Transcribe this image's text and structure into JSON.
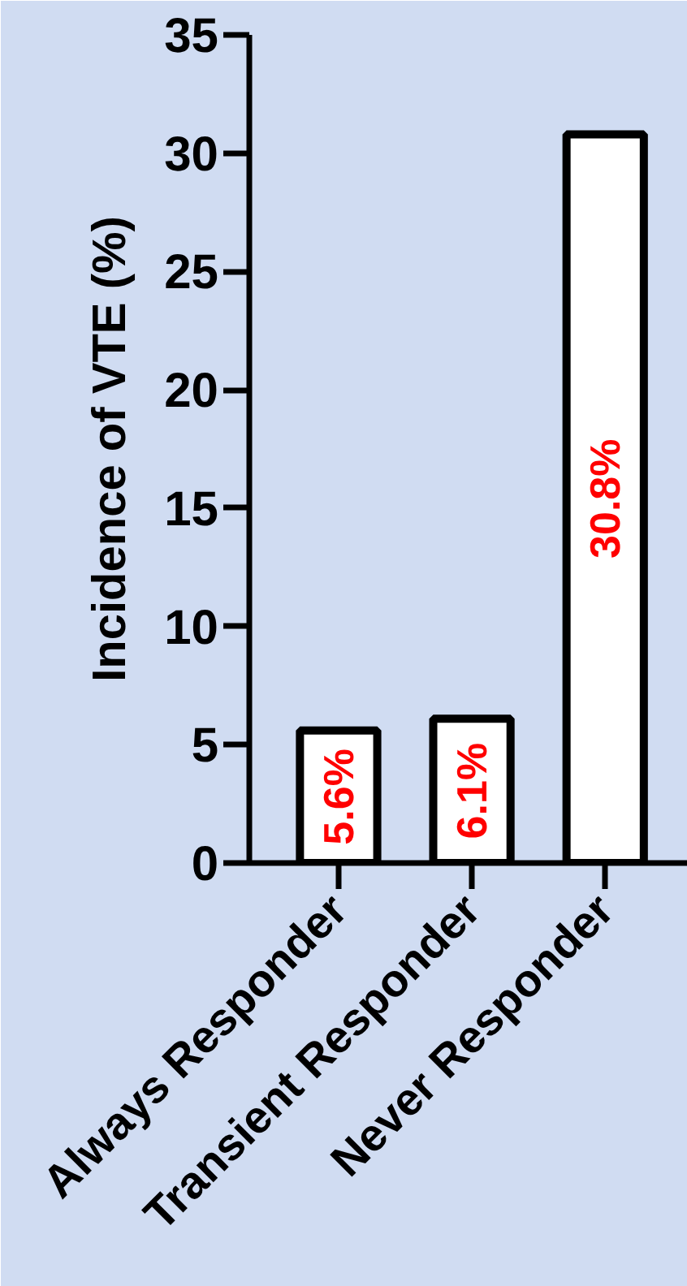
{
  "chart_data": {
    "type": "bar",
    "ylabel": "Incidence of VTE (%)",
    "categories": [
      "Always Responder",
      "Transient Responder",
      "Never Responder"
    ],
    "values": [
      5.6,
      6.1,
      30.8
    ],
    "value_labels": [
      "5.6%",
      "6.1%",
      "30.8%"
    ],
    "color": "#ffffff",
    "ylim": [
      0,
      35
    ],
    "yticks": [
      0,
      5,
      10,
      15,
      20,
      25,
      30,
      35
    ],
    "grid": false
  }
}
